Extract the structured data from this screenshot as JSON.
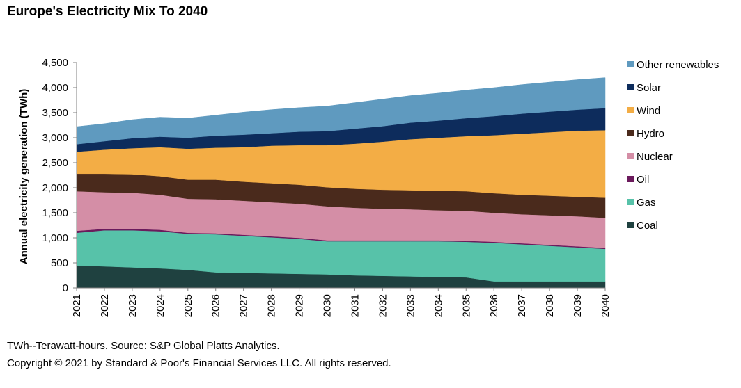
{
  "title": "Europe's Electricity Mix To 2040",
  "footnotes": {
    "source": "TWh--Terawatt-hours. Source: S&P Global Platts Analytics.",
    "copyright": "Copyright © 2021 by Standard & Poor's Financial Services LLC. All rights reserved."
  },
  "chart_data": {
    "type": "area",
    "stacked": true,
    "title": "Europe's Electricity Mix To 2040",
    "xlabel": "",
    "ylabel": "Annual electricity generation (TWh)",
    "ylim": [
      0,
      4500
    ],
    "yticks": [
      0,
      500,
      1000,
      1500,
      2000,
      2500,
      3000,
      3500,
      4000,
      4500
    ],
    "ytick_labels": [
      "0",
      "500",
      "1,000",
      "1,500",
      "2,000",
      "2,500",
      "3,000",
      "3,500",
      "4,000",
      "4,500"
    ],
    "x": [
      "2021",
      "2022",
      "2023",
      "2024",
      "2025",
      "2026",
      "2027",
      "2028",
      "2029",
      "2030",
      "2031",
      "2032",
      "2033",
      "2034",
      "2035",
      "2036",
      "2037",
      "2038",
      "2039",
      "2040"
    ],
    "grid": false,
    "legend_position": "right",
    "series": [
      {
        "name": "Coal",
        "color": "#1f4140",
        "values": [
          450,
          430,
          410,
          390,
          360,
          310,
          300,
          290,
          280,
          270,
          250,
          240,
          230,
          220,
          210,
          130,
          130,
          130,
          130,
          130
        ]
      },
      {
        "name": "Gas",
        "color": "#57c2a9",
        "values": [
          650,
          720,
          740,
          740,
          720,
          760,
          740,
          720,
          700,
          660,
          680,
          690,
          700,
          710,
          710,
          770,
          740,
          710,
          680,
          650
        ]
      },
      {
        "name": "Oil",
        "color": "#6b1a5c",
        "values": [
          40,
          30,
          30,
          30,
          20,
          20,
          20,
          20,
          20,
          20,
          20,
          20,
          20,
          20,
          20,
          20,
          20,
          20,
          20,
          20
        ]
      },
      {
        "name": "Nuclear",
        "color": "#d48ea6",
        "values": [
          790,
          730,
          720,
          700,
          680,
          680,
          680,
          680,
          680,
          680,
          650,
          630,
          620,
          600,
          600,
          580,
          580,
          590,
          600,
          600
        ]
      },
      {
        "name": "Hydro",
        "color": "#4a2a1c",
        "values": [
          350,
          370,
          370,
          370,
          380,
          390,
          380,
          380,
          380,
          380,
          380,
          380,
          380,
          390,
          390,
          390,
          390,
          390,
          390,
          400
        ]
      },
      {
        "name": "Wind",
        "color": "#f3ad45",
        "values": [
          440,
          480,
          520,
          580,
          620,
          640,
          690,
          750,
          790,
          840,
          900,
          960,
          1020,
          1060,
          1100,
          1160,
          1220,
          1270,
          1320,
          1350
        ]
      },
      {
        "name": "Solar",
        "color": "#0d2c5c",
        "values": [
          150,
          170,
          200,
          210,
          220,
          240,
          250,
          250,
          270,
          280,
          300,
          310,
          330,
          340,
          360,
          380,
          400,
          410,
          420,
          440
        ]
      },
      {
        "name": "Other renewables",
        "color": "#5f9abf",
        "values": [
          350,
          350,
          370,
          390,
          390,
          410,
          450,
          470,
          480,
          500,
          520,
          540,
          540,
          550,
          560,
          570,
          580,
          590,
          600,
          610
        ]
      }
    ]
  }
}
